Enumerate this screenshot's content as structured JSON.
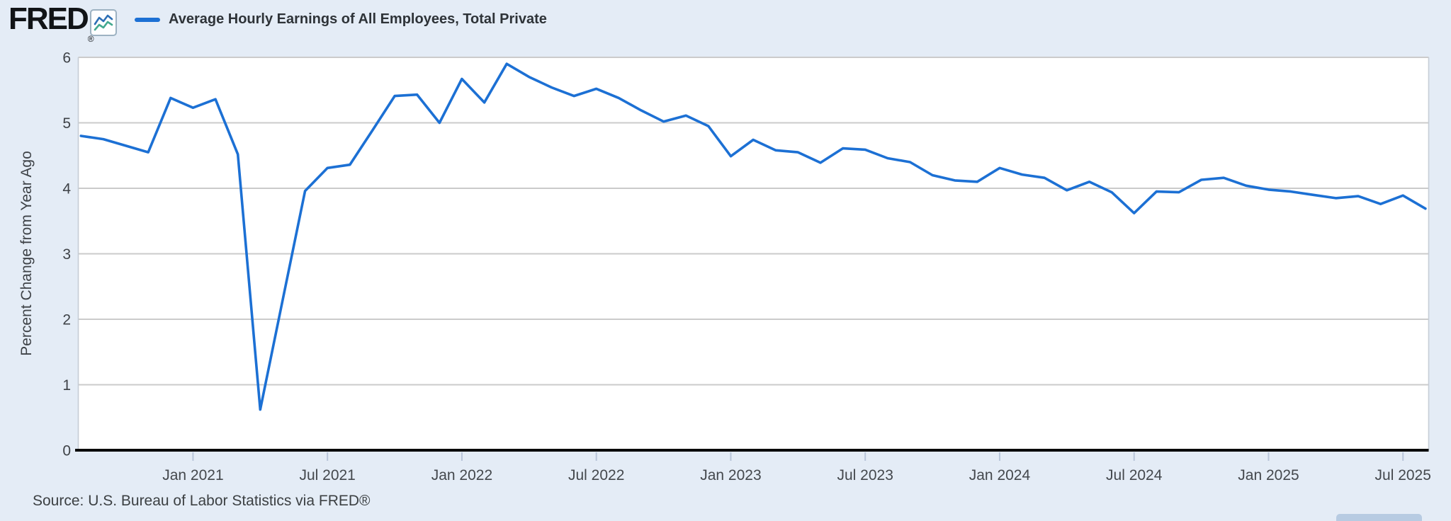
{
  "header": {
    "logo_text": "FRED",
    "logo_registered": "®",
    "legend_label": "Average Hourly Earnings of All Employees, Total Private"
  },
  "colors": {
    "accent_line": "#1c70d4",
    "page_background": "#e4ecf6",
    "plot_background": "#ffffff",
    "gridline": "#cbcbcb",
    "axis": "#0a0a0a",
    "icon_line_blue": "#2d6fb5",
    "icon_line_teal": "#43a88f"
  },
  "footer": {
    "source_text": "Source: U.S. Bureau of Labor Statistics via FRED®"
  },
  "chart_data": {
    "type": "line",
    "title": "Average Hourly Earnings of All Employees, Total Private",
    "xlabel": "",
    "ylabel": "Percent Change from Year Ago",
    "ylim": [
      0,
      6
    ],
    "y_ticks": [
      0,
      1,
      2,
      3,
      4,
      5,
      6
    ],
    "grid": "horizontal",
    "legend_position": "top-left",
    "frequency": "monthly",
    "x": [
      "2020-08",
      "2020-09",
      "2020-10",
      "2020-11",
      "2020-12",
      "2021-01",
      "2021-02",
      "2021-03",
      "2021-04",
      "2021-05",
      "2021-06",
      "2021-07",
      "2021-08",
      "2021-09",
      "2021-10",
      "2021-11",
      "2021-12",
      "2022-01",
      "2022-02",
      "2022-03",
      "2022-04",
      "2022-05",
      "2022-06",
      "2022-07",
      "2022-08",
      "2022-09",
      "2022-10",
      "2022-11",
      "2022-12",
      "2023-01",
      "2023-02",
      "2023-03",
      "2023-04",
      "2023-05",
      "2023-06",
      "2023-07",
      "2023-08",
      "2023-09",
      "2023-10",
      "2023-11",
      "2023-12",
      "2024-01",
      "2024-02",
      "2024-03",
      "2024-04",
      "2024-05",
      "2024-06",
      "2024-07",
      "2024-08",
      "2024-09",
      "2024-10",
      "2024-11",
      "2024-12",
      "2025-01",
      "2025-02",
      "2025-03",
      "2025-04",
      "2025-05",
      "2025-06",
      "2025-07",
      "2025-08"
    ],
    "x_tick_labels": [
      "Jan 2021",
      "Jul 2021",
      "Jan 2022",
      "Jul 2022",
      "Jan 2023",
      "Jul 2023",
      "Jan 2024",
      "Jul 2024",
      "Jan 2025",
      "Jul 2025"
    ],
    "x_tick_indices": [
      5,
      11,
      17,
      23,
      29,
      35,
      41,
      47,
      53,
      59
    ],
    "series": [
      {
        "name": "Average Hourly Earnings of All Employees, Total Private",
        "color": "#1c70d4",
        "values": [
          4.8,
          4.75,
          4.65,
          4.55,
          5.38,
          5.23,
          5.36,
          4.52,
          0.62,
          2.29,
          3.96,
          4.31,
          4.36,
          4.88,
          5.41,
          5.43,
          5.0,
          5.67,
          5.31,
          5.9,
          5.7,
          5.54,
          5.41,
          5.52,
          5.38,
          5.19,
          5.02,
          5.11,
          4.95,
          4.49,
          4.74,
          4.58,
          4.55,
          4.39,
          4.61,
          4.59,
          4.46,
          4.4,
          4.2,
          4.12,
          4.1,
          4.31,
          4.21,
          4.16,
          3.97,
          4.1,
          3.94,
          3.62,
          3.95,
          3.94,
          4.13,
          4.16,
          4.04,
          3.98,
          3.95,
          3.9,
          3.85,
          3.88,
          3.76,
          3.89,
          3.69
        ]
      }
    ]
  }
}
